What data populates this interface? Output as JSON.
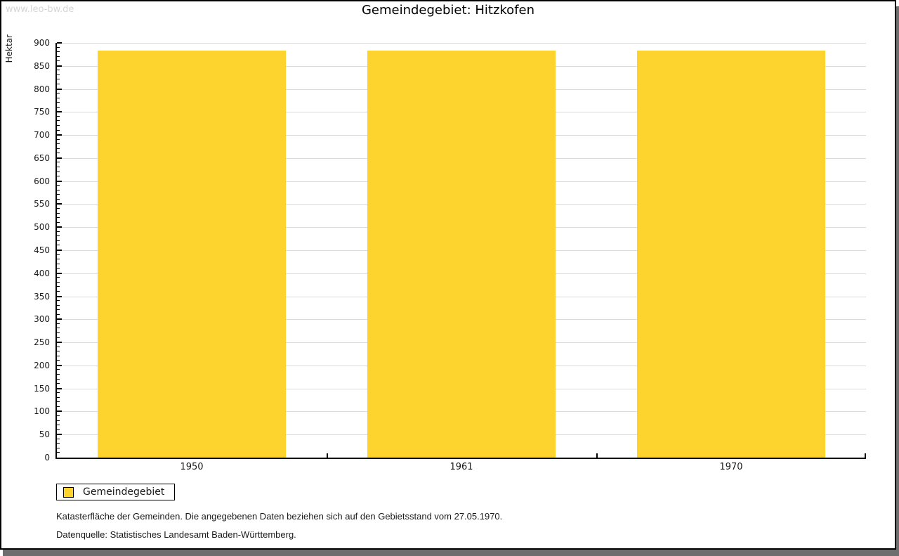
{
  "watermark": "www.leo-bw.de",
  "chart_data": {
    "type": "bar",
    "title": "Gemeindegebiet: Hitzkofen",
    "xlabel": "",
    "ylabel": "Hektar",
    "categories": [
      "1950",
      "1961",
      "1970"
    ],
    "series": [
      {
        "name": "Gemeindegebiet",
        "color": "#FCD42D",
        "values": [
          883,
          883,
          883
        ]
      }
    ],
    "ylim": [
      0,
      900
    ],
    "ytick_major": 50,
    "ytick_minor": 10,
    "grid": "horizontal-major-only",
    "gridline_color": "#d9d9d9",
    "axis_color": "#000000",
    "legend_position": "bottom-left"
  },
  "legend": {
    "label": "Gemeindegebiet",
    "swatch_color": "#FCD42D"
  },
  "notes": {
    "line1": "Katasterfläche der Gemeinden. Die angegebenen Daten beziehen sich auf den Gebietsstand vom 27.05.1970.",
    "line2": "Datenquelle: Statistisches Landesamt Baden-Württemberg."
  },
  "frame": {
    "border_color": "#000000",
    "shadow_color": "#6e6e6e"
  }
}
